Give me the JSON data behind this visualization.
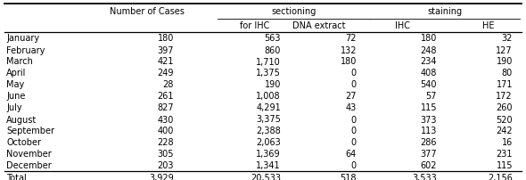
{
  "rows": [
    [
      "January",
      "180",
      "563",
      "72",
      "180",
      "32"
    ],
    [
      "February",
      "397",
      "860",
      "132",
      "248",
      "127"
    ],
    [
      "March",
      "421",
      "1,710",
      "180",
      "234",
      "190"
    ],
    [
      "April",
      "249",
      "1,375",
      "0",
      "408",
      "80"
    ],
    [
      "May",
      "28",
      "190",
      "0",
      "540",
      "171"
    ],
    [
      "June",
      "261",
      "1,008",
      "27",
      "57",
      "172"
    ],
    [
      "July",
      "827",
      "4,291",
      "43",
      "115",
      "260"
    ],
    [
      "August",
      "430",
      "3,375",
      "0",
      "373",
      "520"
    ],
    [
      "September",
      "400",
      "2,388",
      "0",
      "113",
      "242"
    ],
    [
      "October",
      "228",
      "2,063",
      "0",
      "286",
      "16"
    ],
    [
      "November",
      "305",
      "1,369",
      "64",
      "377",
      "231"
    ],
    [
      "December",
      "203",
      "1,341",
      "0",
      "602",
      "115"
    ]
  ],
  "total_row": [
    "Total",
    "3,929",
    "20,533",
    "518",
    "3,533",
    "2,156"
  ],
  "bg_color": "#ffffff",
  "fontsize": 7.0,
  "fontfamily": "sans-serif"
}
